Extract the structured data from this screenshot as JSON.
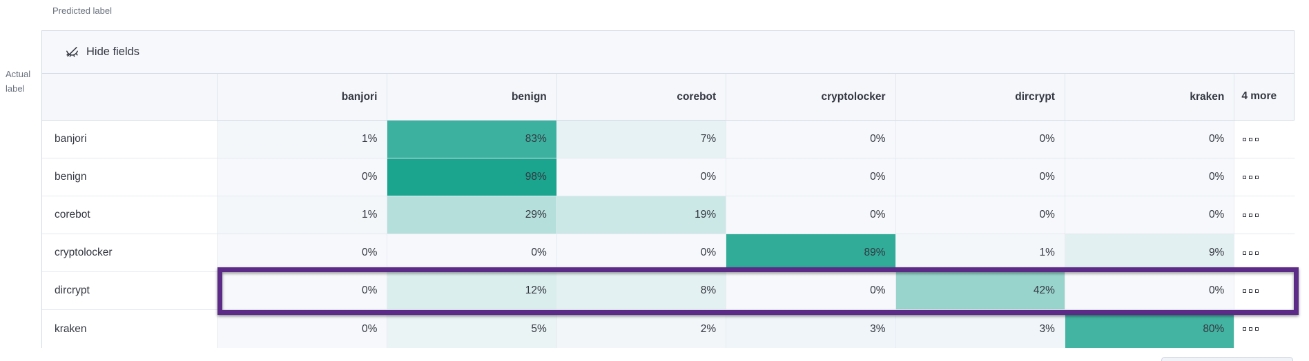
{
  "axes": {
    "predicted": "Predicted label",
    "actual": "Actual\nlabel"
  },
  "toolbar": {
    "hide_fields_label": "Hide fields",
    "hide_fields_icon": "eye-closed-icon"
  },
  "matrix": {
    "columns": [
      "banjori",
      "benign",
      "corebot",
      "cryptolocker",
      "dircrypt",
      "kraken"
    ],
    "more_column_label": "4 more",
    "more_actions_icon": "boxes-horizontal-icon",
    "value_suffix": "%",
    "rows": [
      {
        "label": "banjori",
        "values": [
          1,
          83,
          7,
          0,
          0,
          0
        ],
        "highlighted": false
      },
      {
        "label": "benign",
        "values": [
          0,
          98,
          0,
          0,
          0,
          0
        ],
        "highlighted": false
      },
      {
        "label": "corebot",
        "values": [
          1,
          29,
          19,
          0,
          0,
          0
        ],
        "highlighted": false
      },
      {
        "label": "cryptolocker",
        "values": [
          0,
          0,
          0,
          89,
          1,
          9
        ],
        "highlighted": false
      },
      {
        "label": "dircrypt",
        "values": [
          0,
          12,
          8,
          0,
          42,
          0
        ],
        "highlighted": true
      },
      {
        "label": "kraken",
        "values": [
          0,
          5,
          2,
          3,
          3,
          80
        ],
        "highlighted": false
      }
    ]
  },
  "colors": {
    "heat_base": "#17A38C",
    "cell_base_bg": "#F6F8FB",
    "header_bg": "#F5F7FA",
    "toolbar_bg": "#F7F8FC",
    "border": "#D3DAE6",
    "text": "#343741",
    "muted_text": "#69707D",
    "highlight_border": "#5C2B87"
  }
}
